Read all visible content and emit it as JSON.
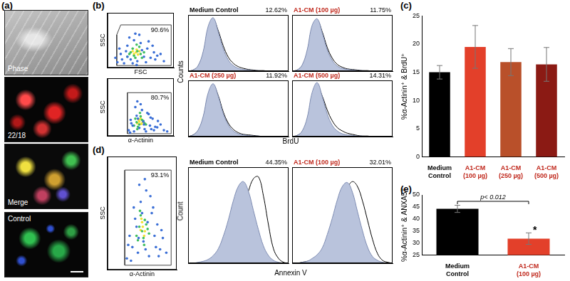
{
  "panel_labels": [
    "(a)",
    "(b)",
    "(c)",
    "(d)",
    "(e)"
  ],
  "images": [
    {
      "label": "Phase"
    },
    {
      "label": "22/18"
    },
    {
      "label": "Merge"
    },
    {
      "label": "Control"
    }
  ],
  "chart_data": [
    {
      "type": "scatter",
      "x_label": "FSC",
      "y_label": "SSC",
      "tick_labels": false,
      "xlim": [
        0,
        100
      ],
      "ylim": [
        0,
        100
      ],
      "series": [
        {
          "color": "#3b6fd6",
          "x": [
            15,
            20,
            25,
            30,
            35,
            40,
            45,
            50,
            55,
            60,
            65,
            70,
            75,
            22,
            28,
            33,
            38,
            48,
            58,
            68,
            18,
            42,
            52,
            62,
            30,
            72,
            80,
            12,
            85,
            44
          ],
          "values": [
            10,
            25,
            8,
            40,
            15,
            50,
            12,
            45,
            20,
            35,
            18,
            28,
            22,
            15,
            30,
            55,
            8,
            60,
            10,
            40,
            35,
            62,
            32,
            48,
            20,
            15,
            25,
            18,
            12,
            5
          ]
        },
        {
          "color": "#3fbf5f",
          "x": [
            30,
            35,
            40,
            45,
            50,
            38,
            42,
            48,
            55,
            33,
            52,
            44
          ],
          "values": [
            20,
            28,
            22,
            30,
            25,
            35,
            18,
            38,
            28,
            25,
            18,
            42
          ]
        },
        {
          "color": "#f2e233",
          "x": [
            40,
            43,
            46,
            38,
            48,
            44
          ],
          "values": [
            25,
            28,
            24,
            30,
            30,
            33
          ]
        }
      ],
      "gate": {
        "x": [
          14,
          96,
          96,
          20,
          14,
          14
        ],
        "y": [
          4,
          4,
          78,
          78,
          60,
          4
        ]
      },
      "gate_label": "90.6%"
    },
    {
      "type": "scatter",
      "x_label": "α-Actinin",
      "y_label": "SSC",
      "tick_labels": false,
      "xlim": [
        0,
        100
      ],
      "ylim": [
        0,
        100
      ],
      "series": [
        {
          "color": "#3b6fd6",
          "x": [
            32,
            36,
            40,
            44,
            48,
            52,
            56,
            60,
            64,
            68,
            72,
            76,
            80,
            35,
            42,
            50,
            58,
            66,
            38,
            46,
            54,
            62,
            70,
            34,
            45,
            55,
            65,
            75,
            85,
            90
          ],
          "values": [
            10,
            22,
            8,
            35,
            14,
            45,
            12,
            40,
            18,
            30,
            16,
            26,
            20,
            28,
            50,
            55,
            8,
            12,
            18,
            30,
            25,
            38,
            10,
            6,
            60,
            20,
            32,
            15,
            10,
            8
          ]
        },
        {
          "color": "#3fbf5f",
          "x": [
            40,
            44,
            48,
            52,
            56,
            42,
            46,
            50,
            54,
            58,
            45,
            49
          ],
          "values": [
            18,
            24,
            20,
            28,
            22,
            30,
            16,
            34,
            26,
            20,
            12,
            40
          ]
        },
        {
          "color": "#f2e233",
          "x": [
            45,
            48,
            51,
            47,
            50,
            53
          ],
          "values": [
            22,
            25,
            21,
            28,
            30,
            24
          ]
        }
      ],
      "gate": {
        "x": [
          30,
          96,
          96,
          30,
          30
        ],
        "y": [
          4,
          4,
          75,
          75,
          4
        ]
      },
      "gate_label": "80.7%"
    },
    {
      "type": "line",
      "title": "Medium Control",
      "annotation": "12.62%",
      "y_label": "Counts",
      "tick_labels": false,
      "xlim": [
        0,
        100
      ],
      "ylim": [
        0,
        100
      ],
      "x": [
        0,
        5,
        10,
        15,
        20,
        25,
        30,
        35,
        40,
        45,
        50,
        55,
        60,
        65,
        70,
        75,
        80,
        85,
        90,
        95,
        100
      ],
      "series": [
        {
          "type": "area",
          "color": "#b9c3dc",
          "values": [
            0,
            2,
            10,
            35,
            80,
            95,
            70,
            40,
            20,
            10,
            5,
            3,
            2,
            1,
            1,
            0,
            0,
            0,
            0,
            0,
            0
          ]
        },
        {
          "type": "line",
          "color": "#000000",
          "values": [
            0,
            2,
            9,
            32,
            75,
            92,
            72,
            45,
            25,
            14,
            8,
            5,
            3,
            2,
            1,
            1,
            0,
            0,
            0,
            0,
            0
          ]
        }
      ]
    },
    {
      "type": "line",
      "title": "A1-CM (100 µg)",
      "annotation": "11.75%",
      "tick_labels": false,
      "xlim": [
        0,
        100
      ],
      "ylim": [
        0,
        100
      ],
      "x": [
        0,
        5,
        10,
        15,
        20,
        25,
        30,
        35,
        40,
        45,
        50,
        55,
        60,
        65,
        70,
        75,
        80,
        85,
        90,
        95,
        100
      ],
      "series": [
        {
          "type": "area",
          "color": "#b9c3dc",
          "values": [
            0,
            2,
            11,
            38,
            82,
            93,
            68,
            38,
            19,
            9,
            5,
            3,
            2,
            1,
            1,
            0,
            0,
            0,
            0,
            0,
            0
          ]
        },
        {
          "type": "line",
          "color": "#000000",
          "values": [
            0,
            2,
            10,
            34,
            78,
            90,
            70,
            42,
            23,
            12,
            7,
            4,
            3,
            2,
            1,
            1,
            0,
            0,
            0,
            0,
            0
          ]
        }
      ]
    },
    {
      "type": "line",
      "title": "A1-CM (250 µg)",
      "annotation": "11.92%",
      "x_label": "BrdU",
      "tick_labels": false,
      "xlim": [
        0,
        100
      ],
      "ylim": [
        0,
        100
      ],
      "x": [
        0,
        5,
        10,
        15,
        20,
        25,
        30,
        35,
        40,
        45,
        50,
        55,
        60,
        65,
        70,
        75,
        80,
        85,
        90,
        95,
        100
      ],
      "series": [
        {
          "type": "area",
          "color": "#b9c3dc",
          "values": [
            0,
            3,
            12,
            36,
            78,
            94,
            72,
            41,
            21,
            10,
            5,
            3,
            2,
            1,
            1,
            0,
            0,
            0,
            0,
            0,
            0
          ]
        },
        {
          "type": "line",
          "color": "#000000",
          "values": [
            0,
            3,
            11,
            33,
            74,
            91,
            73,
            44,
            24,
            13,
            7,
            4,
            3,
            2,
            1,
            0,
            0,
            0,
            0,
            0,
            0
          ]
        }
      ]
    },
    {
      "type": "line",
      "title": "A1-CM (500 µg)",
      "annotation": "14.31%",
      "tick_labels": false,
      "xlim": [
        0,
        100
      ],
      "ylim": [
        0,
        100
      ],
      "x": [
        0,
        5,
        10,
        15,
        20,
        25,
        30,
        35,
        40,
        45,
        50,
        55,
        60,
        65,
        70,
        75,
        80,
        85,
        90,
        95,
        100
      ],
      "series": [
        {
          "type": "area",
          "color": "#b9c3dc",
          "values": [
            0,
            2,
            10,
            34,
            79,
            96,
            71,
            40,
            20,
            10,
            5,
            3,
            2,
            1,
            1,
            0,
            0,
            0,
            0,
            0,
            0
          ]
        },
        {
          "type": "line",
          "color": "#000000",
          "values": [
            0,
            2,
            9,
            30,
            72,
            90,
            72,
            47,
            28,
            16,
            10,
            6,
            4,
            2,
            1,
            1,
            0,
            0,
            0,
            0,
            0
          ]
        }
      ]
    },
    {
      "type": "bar",
      "y_label": "%α-Actinin⁺ & BrdU⁺",
      "categories": [
        "Medium Control",
        "A1-CM (100 µg)",
        "A1-CM (250 µg)",
        "A1-CM (500 µg)"
      ],
      "values": [
        15.0,
        19.5,
        16.8,
        16.4
      ],
      "errors": [
        1.2,
        3.8,
        2.4,
        3.0
      ],
      "colors": [
        "#000000",
        "#e3402a",
        "#b9502a",
        "#8b1a14"
      ],
      "ylim": [
        0,
        25
      ],
      "yticks": [
        0,
        5,
        10,
        15,
        20,
        25
      ],
      "grid": false
    },
    {
      "type": "scatter",
      "x_label": "α-Actinin",
      "y_label": "SSC",
      "tick_labels": false,
      "xlim": [
        0,
        100
      ],
      "ylim": [
        0,
        100
      ],
      "series": [
        {
          "color": "#3b6fd6",
          "x": [
            28,
            32,
            36,
            40,
            44,
            48,
            52,
            56,
            60,
            64,
            68,
            72,
            76,
            80,
            85,
            30,
            38,
            46,
            54,
            62,
            70,
            78,
            34,
            42,
            50,
            58,
            66,
            74,
            45,
            55
          ],
          "values": [
            10,
            30,
            20,
            45,
            15,
            60,
            25,
            70,
            12,
            50,
            30,
            40,
            18,
            28,
            15,
            22,
            55,
            75,
            80,
            65,
            20,
            35,
            8,
            38,
            50,
            42,
            55,
            12,
            28,
            18
          ]
        },
        {
          "color": "#3fbf5f",
          "x": [
            42,
            46,
            50,
            54,
            58,
            44,
            48,
            52,
            56,
            60,
            47,
            53
          ],
          "values": [
            30,
            38,
            34,
            44,
            36,
            26,
            48,
            28,
            40,
            32,
            52,
            22
          ]
        },
        {
          "color": "#f2e233",
          "x": [
            48,
            51,
            54,
            50,
            53,
            49
          ],
          "values": [
            35,
            38,
            34,
            42,
            30,
            45
          ]
        }
      ],
      "gate": {
        "x": [
          25,
          92,
          92,
          25,
          25
        ],
        "y": [
          4,
          4,
          88,
          88,
          4
        ]
      },
      "gate_label": "93.1%"
    },
    {
      "type": "line",
      "title": "Medium Control",
      "annotation": "44.35%",
      "y_label": "Count",
      "x_label": "Annexin V",
      "tick_labels": false,
      "xlim": [
        0,
        100
      ],
      "ylim": [
        0,
        100
      ],
      "x": [
        0,
        5,
        10,
        15,
        20,
        25,
        30,
        35,
        40,
        45,
        50,
        55,
        60,
        65,
        70,
        75,
        80,
        85,
        90,
        95,
        100
      ],
      "series": [
        {
          "type": "area",
          "color": "#b9c3dc",
          "values": [
            0,
            0,
            1,
            2,
            4,
            8,
            15,
            28,
            45,
            65,
            80,
            85,
            75,
            55,
            35,
            18,
            8,
            3,
            1,
            0,
            0
          ]
        },
        {
          "type": "line",
          "color": "#000000",
          "values": [
            0,
            0,
            0,
            1,
            2,
            4,
            8,
            14,
            22,
            32,
            45,
            60,
            75,
            88,
            90,
            70,
            40,
            15,
            5,
            1,
            0
          ]
        }
      ]
    },
    {
      "type": "line",
      "title": "A1-CM (100 µg)",
      "annotation": "32.01%",
      "tick_labels": false,
      "xlim": [
        0,
        100
      ],
      "ylim": [
        0,
        100
      ],
      "x": [
        0,
        5,
        10,
        15,
        20,
        25,
        30,
        35,
        40,
        45,
        50,
        55,
        60,
        65,
        70,
        75,
        80,
        85,
        90,
        95,
        100
      ],
      "series": [
        {
          "type": "area",
          "color": "#b9c3dc",
          "values": [
            0,
            0,
            1,
            2,
            5,
            9,
            16,
            30,
            47,
            66,
            80,
            84,
            74,
            54,
            34,
            17,
            7,
            3,
            1,
            0,
            0
          ]
        },
        {
          "type": "line",
          "color": "#000000",
          "values": [
            0,
            0,
            1,
            2,
            3,
            6,
            12,
            22,
            35,
            50,
            65,
            78,
            85,
            80,
            65,
            45,
            25,
            10,
            3,
            1,
            0
          ]
        }
      ]
    },
    {
      "type": "bar",
      "y_label": "%α-Actinin⁺ & ANXA5⁺",
      "categories": [
        "Medium Control",
        "A1-CM (100 µg)"
      ],
      "values": [
        44.2,
        31.8
      ],
      "errors": [
        1.5,
        2.4
      ],
      "colors": [
        "#000000",
        "#e3402a"
      ],
      "ylim": [
        25,
        50
      ],
      "yticks": [
        25,
        30,
        35,
        40,
        45,
        50
      ],
      "grid": false,
      "annotations": [
        "p< 0.012",
        "*"
      ]
    }
  ]
}
